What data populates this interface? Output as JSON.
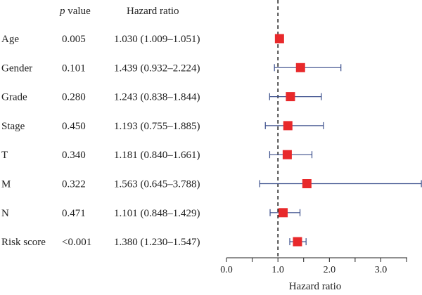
{
  "chart_data": {
    "type": "forest",
    "headers": {
      "p_symbol": "p",
      "p_rest": " value",
      "hr": "Hazard ratio"
    },
    "rows": [
      {
        "variable": "Age",
        "p_value": "0.005",
        "hr_text": "1.030 (1.009–1.051)",
        "hr": 1.03,
        "lower": 1.009,
        "upper": 1.051
      },
      {
        "variable": "Gender",
        "p_value": "0.101",
        "hr_text": "1.439 (0.932–2.224)",
        "hr": 1.439,
        "lower": 0.932,
        "upper": 2.224
      },
      {
        "variable": "Grade",
        "p_value": "0.280",
        "hr_text": "1.243 (0.838–1.844)",
        "hr": 1.243,
        "lower": 0.838,
        "upper": 1.844
      },
      {
        "variable": "Stage",
        "p_value": "0.450",
        "hr_text": "1.193 (0.755–1.885)",
        "hr": 1.193,
        "lower": 0.755,
        "upper": 1.885
      },
      {
        "variable": "T",
        "p_value": "0.340",
        "hr_text": "1.181 (0.840–1.661)",
        "hr": 1.181,
        "lower": 0.84,
        "upper": 1.661
      },
      {
        "variable": "M",
        "p_value": "0.322",
        "hr_text": "1.563 (0.645–3.788)",
        "hr": 1.563,
        "lower": 0.645,
        "upper": 3.788
      },
      {
        "variable": "N",
        "p_value": "0.471",
        "hr_text": "1.101 (0.848–1.429)",
        "hr": 1.101,
        "lower": 0.848,
        "upper": 1.429
      },
      {
        "variable": "Risk score",
        "p_value": "<0.001",
        "hr_text": "1.380 (1.230–1.547)",
        "hr": 1.38,
        "lower": 1.23,
        "upper": 1.547
      }
    ],
    "xlim": [
      0,
      3.8
    ],
    "xticks": [
      0.0,
      0.5,
      1.0,
      1.5,
      2.0,
      2.5,
      3.0,
      3.5
    ],
    "xtick_labels": [
      {
        "value": 0.0,
        "label": "0.0"
      },
      {
        "value": 1.0,
        "label": "1.0"
      },
      {
        "value": 2.0,
        "label": "2.0"
      },
      {
        "value": 3.0,
        "label": "3.0"
      }
    ],
    "xlabel": "Hazard ratio",
    "reference_line": 1.0,
    "colors": {
      "marker": "#e8292b",
      "ci_line": "#3b4f8c",
      "axis": "#222222",
      "reference": "#222222"
    }
  }
}
